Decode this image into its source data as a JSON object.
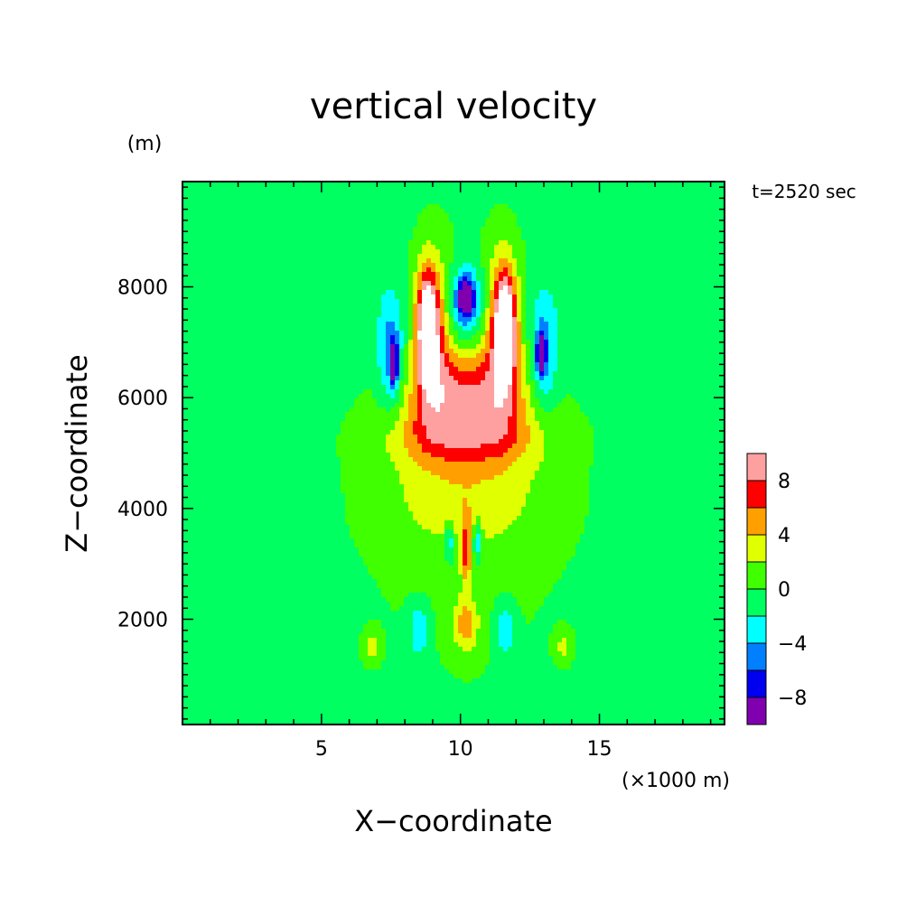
{
  "chart_data": {
    "type": "heatmap",
    "title": "vertical velocity",
    "xlabel": "X−coordinate",
    "ylabel": "Z−coordinate",
    "x_unit": "(×1000 m)",
    "y_unit": "(m)",
    "time_label": "t=2520 sec",
    "xlim": [
      0,
      19.5
    ],
    "ylim": [
      100,
      9900
    ],
    "x_ticks": [
      5,
      10,
      15
    ],
    "x_tick_labels": [
      "5",
      "10",
      "15"
    ],
    "y_ticks": [
      2000,
      4000,
      6000,
      8000
    ],
    "y_tick_labels": [
      "2000",
      "4000",
      "6000",
      "8000"
    ],
    "colorbar": {
      "levels": [
        -10,
        -8,
        -6,
        -4,
        -2,
        0,
        2,
        4,
        6,
        8,
        10
      ],
      "colors": [
        "#8000b0",
        "#0000f0",
        "#0080ff",
        "#00ffff",
        "#00ff60",
        "#40ff00",
        "#e0ff00",
        "#ffa000",
        "#ff0000",
        "#ffa0a0"
      ],
      "tick_values": [
        -8,
        -4,
        0,
        4,
        8
      ],
      "tick_labels": [
        "−8",
        "−4",
        "0",
        "4",
        "8"
      ]
    },
    "background_value": -1,
    "features": [
      {
        "value": 1,
        "cx": 10.2,
        "cz": 2700,
        "sx": 6.5,
        "sz": 4200
      },
      {
        "value": 1,
        "cx": 10.2,
        "cz": 6500,
        "sx": 3.2,
        "sz": 3700
      },
      {
        "value": 3,
        "cx": 10.2,
        "cz": 4300,
        "sx": 3.0,
        "sz": 1100
      },
      {
        "value": 5,
        "cx": 10.2,
        "cz": 5300,
        "sx": 2.8,
        "sz": 550
      },
      {
        "value": 5,
        "cx": 10.2,
        "cz": 1900,
        "sx": 0.45,
        "sz": 500
      },
      {
        "value": 6,
        "cx": 10.2,
        "cz": 3200,
        "sx": 0.18,
        "sz": 600
      },
      {
        "value": 7,
        "cx": 10.2,
        "cz": 6100,
        "sx": 2.1,
        "sz": 750
      },
      {
        "value": 7,
        "cx": 9.0,
        "cz": 7200,
        "sx": 0.65,
        "sz": 1400
      },
      {
        "value": 7,
        "cx": 11.5,
        "cz": 7200,
        "sx": 0.65,
        "sz": 1400
      },
      {
        "value": 10,
        "cx": 8.8,
        "cz": 7300,
        "sx": 0.35,
        "sz": 900
      },
      {
        "value": 10,
        "cx": 11.6,
        "cz": 7300,
        "sx": 0.35,
        "sz": 900
      },
      {
        "value": 3,
        "cx": 6.8,
        "cz": 1500,
        "sx": 0.3,
        "sz": 300
      },
      {
        "value": 3,
        "cx": 13.7,
        "cz": 1500,
        "sx": 0.3,
        "sz": 300
      },
      {
        "value": -5,
        "cx": 10.2,
        "cz": 7700,
        "sx": 0.75,
        "sz": 700
      },
      {
        "value": -9,
        "cx": 10.2,
        "cz": 7800,
        "sx": 0.3,
        "sz": 350
      },
      {
        "value": -5,
        "cx": 7.5,
        "cz": 6800,
        "sx": 0.5,
        "sz": 1100
      },
      {
        "value": -9,
        "cx": 7.6,
        "cz": 6600,
        "sx": 0.15,
        "sz": 400
      },
      {
        "value": -5,
        "cx": 13.0,
        "cz": 6800,
        "sx": 0.5,
        "sz": 1100
      },
      {
        "value": -9,
        "cx": 12.9,
        "cz": 6800,
        "sx": 0.15,
        "sz": 350
      },
      {
        "value": -4,
        "cx": 8.5,
        "cz": 1800,
        "sx": 0.35,
        "sz": 450
      },
      {
        "value": -4,
        "cx": 11.6,
        "cz": 1800,
        "sx": 0.35,
        "sz": 450
      },
      {
        "value": -5,
        "cx": 9.6,
        "cz": 3400,
        "sx": 0.15,
        "sz": 350
      },
      {
        "value": -5,
        "cx": 10.6,
        "cz": 3400,
        "sx": 0.15,
        "sz": 350
      }
    ]
  }
}
